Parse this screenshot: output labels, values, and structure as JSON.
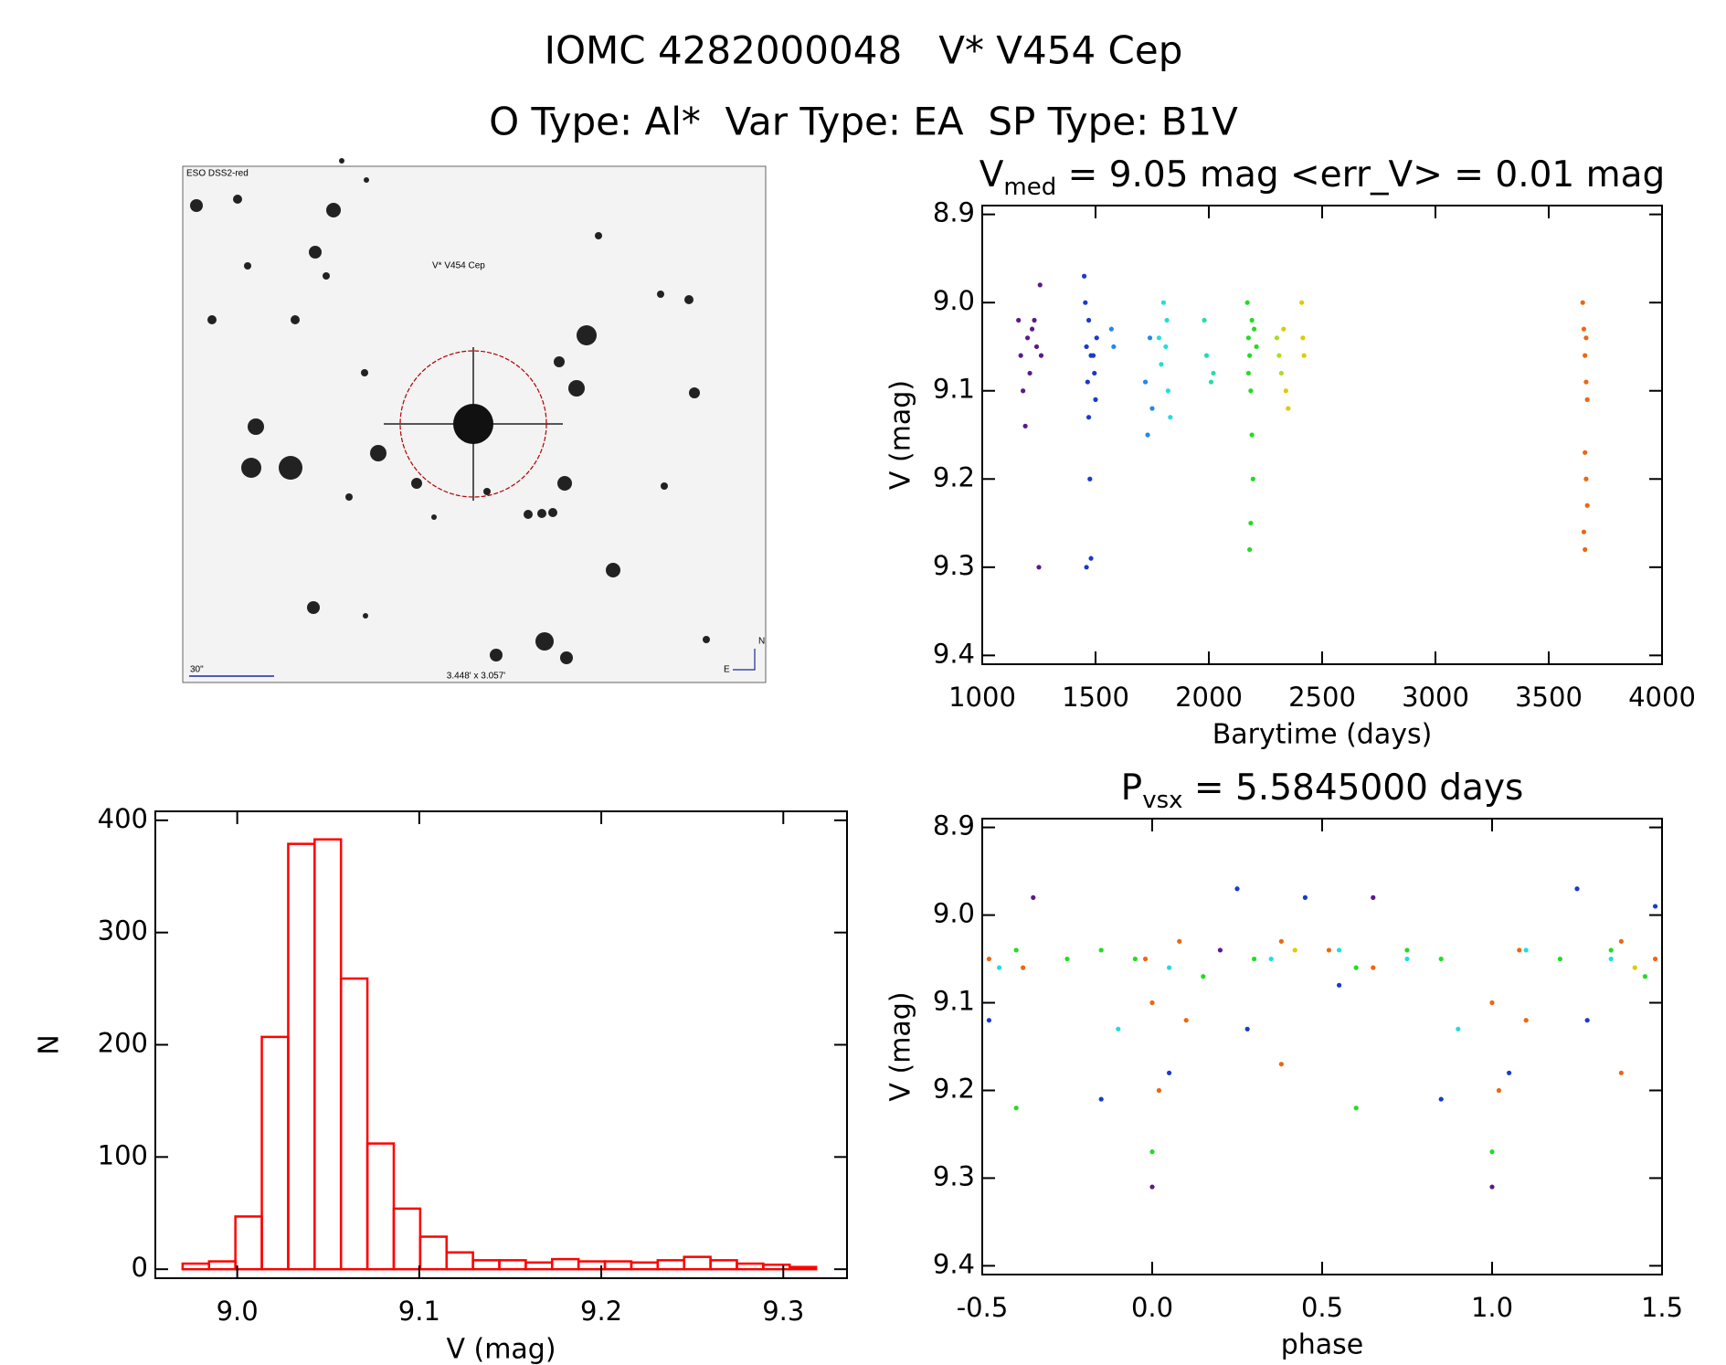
{
  "title": "IOMC 4282000048   V* V454 Cep",
  "subtitle": "O Type: Al*  Var Type: EA  SP Type: B1V",
  "image_panel": {
    "survey": "ESO DSS2-red",
    "target": "V* V454 Cep",
    "scale_label": "30\"",
    "field_size": "3.448' x 3.057'",
    "north": "N",
    "east": "E"
  },
  "chart_data": [
    {
      "type": "histogram",
      "x_label": "V (mag)",
      "y_label": "N",
      "color": "#ff0000",
      "bins": [
        8.97,
        8.9845,
        8.999,
        9.0135,
        9.028,
        9.0425,
        9.057,
        9.0715,
        9.086,
        9.1005,
        9.115,
        9.1295,
        9.144,
        9.1585,
        9.173,
        9.1875,
        9.202,
        9.2165,
        9.231,
        9.2455,
        9.26,
        9.2745,
        9.289,
        9.3035,
        9.318
      ],
      "values": [
        5,
        7,
        47,
        207,
        379,
        383,
        259,
        112,
        54,
        29,
        15,
        8,
        8,
        6,
        9,
        7,
        7,
        6,
        8,
        11,
        8,
        5,
        4,
        2
      ],
      "xlim": [
        8.955,
        9.335
      ],
      "ylim": [
        -8,
        408
      ],
      "xticks": [
        {
          "value": 9,
          "label": "9.0"
        },
        9.1,
        9.2,
        9.3
      ],
      "yticks": [
        0,
        100,
        200,
        300,
        400
      ]
    },
    {
      "type": "scatter",
      "title_parts": [
        "V",
        "med",
        " = 9.05 mag <err_V> = 0.01 mag"
      ],
      "x_label": "Barytime (days)",
      "y_label": "V (mag)",
      "xlim": [
        1000,
        4000
      ],
      "ylim": [
        9.41,
        8.89
      ],
      "xticks": [
        1000,
        1500,
        2000,
        2500,
        3000,
        3500,
        4000
      ],
      "yticks": [
        8.9,
        {
          "value": 9,
          "label": "9.0"
        },
        9.1,
        9.2,
        9.3,
        9.4
      ],
      "series": [
        {
          "color": "#5a1a8a",
          "x": [
            1160,
            1170,
            1180,
            1190,
            1200,
            1210,
            1220,
            1230,
            1240,
            1250,
            1255,
            1260
          ],
          "values": [
            9.02,
            9.06,
            9.1,
            9.14,
            9.04,
            9.08,
            9.03,
            9.02,
            9.05,
            9.3,
            8.98,
            9.06
          ]
        },
        {
          "color": "#1a3acc",
          "x": [
            1450,
            1455,
            1460,
            1465,
            1470,
            1475,
            1480,
            1460,
            1490,
            1495,
            1500,
            1505,
            1470,
            1480
          ],
          "values": [
            8.97,
            9.0,
            9.05,
            9.09,
            9.13,
            9.2,
            9.29,
            9.3,
            9.06,
            9.08,
            9.11,
            9.04,
            9.02,
            9.06
          ]
        },
        {
          "color": "#2288ee",
          "x": [
            1570,
            1580,
            1720,
            1730,
            1740,
            1750
          ],
          "values": [
            9.03,
            9.05,
            9.09,
            9.15,
            9.04,
            9.12
          ]
        },
        {
          "color": "#22dddd",
          "x": [
            1780,
            1800,
            1810,
            1820,
            1830,
            1790,
            1815
          ],
          "values": [
            9.04,
            9.0,
            9.05,
            9.1,
            9.13,
            9.07,
            9.02
          ]
        },
        {
          "color": "#22ddaa",
          "x": [
            1980,
            1990,
            2020,
            2010
          ],
          "values": [
            9.02,
            9.06,
            9.08,
            9.09
          ]
        },
        {
          "color": "#22dd22",
          "x": [
            2170,
            2175,
            2180,
            2185,
            2190,
            2195,
            2185,
            2180,
            2200,
            2210,
            2190,
            2175
          ],
          "values": [
            9.0,
            9.04,
            9.06,
            9.1,
            9.15,
            9.2,
            9.25,
            9.28,
            9.03,
            9.05,
            9.02,
            9.08
          ]
        },
        {
          "color": "#aadd22",
          "x": [
            2300,
            2310,
            2320
          ],
          "values": [
            9.04,
            9.06,
            9.08
          ]
        },
        {
          "color": "#ddcc00",
          "x": [
            2330,
            2340,
            2350,
            2410,
            2415,
            2420
          ],
          "values": [
            9.03,
            9.1,
            9.12,
            9.0,
            9.04,
            9.06
          ]
        },
        {
          "color": "#ee6611",
          "x": [
            3650,
            3655,
            3660,
            3665,
            3670,
            3660,
            3665,
            3670,
            3655,
            3660,
            3665
          ],
          "values": [
            9.0,
            9.03,
            9.06,
            9.09,
            9.11,
            9.17,
            9.2,
            9.23,
            9.26,
            9.28,
            9.04
          ]
        }
      ]
    },
    {
      "type": "scatter",
      "title_parts": [
        "P",
        "vsx",
        " = 5.5845000 days"
      ],
      "x_label": "phase",
      "y_label": "V (mag)",
      "xlim": [
        -0.5,
        1.5
      ],
      "ylim": [
        9.41,
        8.89
      ],
      "xticks": [
        -0.5,
        {
          "value": 0,
          "label": "0.0"
        },
        0.5,
        {
          "value": 1,
          "label": "1.0"
        },
        1.5
      ],
      "yticks": [
        8.9,
        {
          "value": 9,
          "label": "9.0"
        },
        9.1,
        9.2,
        9.3,
        9.4
      ],
      "series": [
        {
          "color": "#5a1a8a",
          "x": [
            0.0,
            1.0,
            -0.35,
            0.65,
            0.2
          ],
          "values": [
            9.31,
            9.31,
            8.98,
            8.98,
            9.04
          ]
        },
        {
          "color": "#1a3acc",
          "x": [
            -0.48,
            0.25,
            0.45,
            1.25,
            0.28,
            1.28,
            0.05,
            1.05,
            0.55,
            -0.15,
            0.85,
            1.48
          ],
          "values": [
            9.12,
            8.97,
            8.98,
            8.97,
            9.13,
            9.12,
            9.18,
            9.18,
            9.08,
            9.21,
            9.21,
            8.99
          ]
        },
        {
          "color": "#22dddd",
          "x": [
            -0.45,
            0.05,
            0.35,
            0.55,
            0.75,
            1.1,
            1.35,
            -0.1,
            0.9
          ],
          "values": [
            9.06,
            9.06,
            9.05,
            9.04,
            9.05,
            9.04,
            9.05,
            9.13,
            9.13
          ]
        },
        {
          "color": "#22dd22",
          "x": [
            -0.4,
            -0.4,
            0.0,
            1.0,
            -0.25,
            -0.15,
            -0.05,
            0.15,
            0.3,
            0.6,
            0.6,
            0.75,
            0.85,
            1.2,
            1.35,
            1.45
          ],
          "values": [
            9.04,
            9.22,
            9.27,
            9.27,
            9.05,
            9.04,
            9.05,
            9.07,
            9.05,
            9.22,
            9.06,
            9.04,
            9.05,
            9.05,
            9.04,
            9.07
          ]
        },
        {
          "color": "#ee6611",
          "x": [
            -0.48,
            -0.38,
            0.02,
            0.0,
            -0.02,
            0.08,
            0.38,
            0.38,
            0.52,
            0.65,
            1.02,
            1.0,
            1.08,
            1.38,
            1.38,
            1.48,
            0.1,
            1.1
          ],
          "values": [
            9.05,
            9.06,
            9.2,
            9.1,
            9.05,
            9.03,
            9.03,
            9.17,
            9.04,
            9.06,
            9.2,
            9.1,
            9.04,
            9.03,
            9.18,
            9.05,
            9.12,
            9.12
          ]
        },
        {
          "color": "#ddcc00",
          "x": [
            0.42,
            1.42
          ],
          "values": [
            9.04,
            9.06
          ]
        }
      ]
    }
  ]
}
